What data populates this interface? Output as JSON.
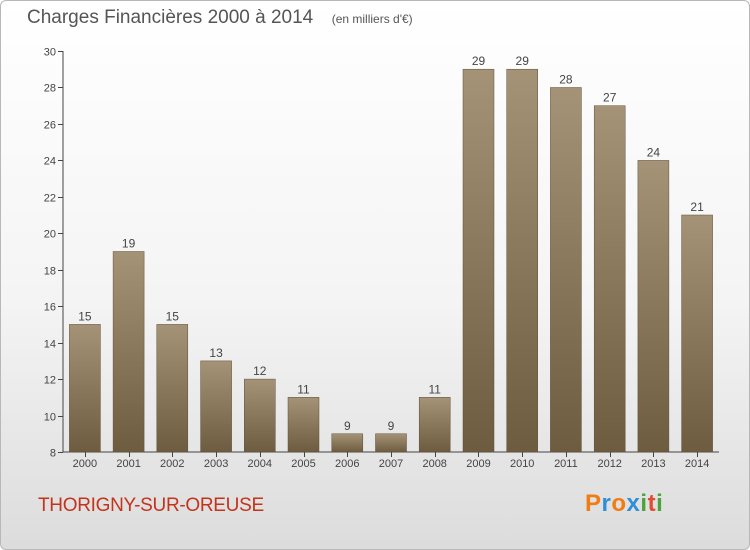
{
  "header": {
    "title": "Charges Financières 2000 à 2014",
    "subtitle": "(en milliers d'€)"
  },
  "place_name": "THORIGNY-SUR-OREUSE",
  "logo": {
    "letters": [
      "P",
      "r",
      "o",
      "x",
      "i",
      "t",
      "i"
    ],
    "colors": [
      "#f07c12",
      "#2f8fd6",
      "#f07c12",
      "#2f8fd6",
      "#4aa43c",
      "#e14c32",
      "#4aa43c"
    ]
  },
  "chart_data": {
    "type": "bar",
    "title": "Charges Financières 2000 à 2014",
    "subtitle": "(en milliers d'€)",
    "categories": [
      "2000",
      "2001",
      "2002",
      "2003",
      "2004",
      "2005",
      "2006",
      "2007",
      "2008",
      "2009",
      "2010",
      "2011",
      "2012",
      "2013",
      "2014"
    ],
    "values": [
      15,
      19,
      15,
      13,
      12,
      11,
      9,
      9,
      11,
      29,
      29,
      28,
      27,
      24,
      21
    ],
    "ylim": [
      8,
      30
    ],
    "yticks": [
      8,
      10,
      12,
      14,
      16,
      18,
      20,
      22,
      24,
      26,
      28,
      30
    ],
    "grid": false,
    "bar_colors": {
      "top": "#a59378",
      "bottom": "#6e5c40"
    }
  }
}
